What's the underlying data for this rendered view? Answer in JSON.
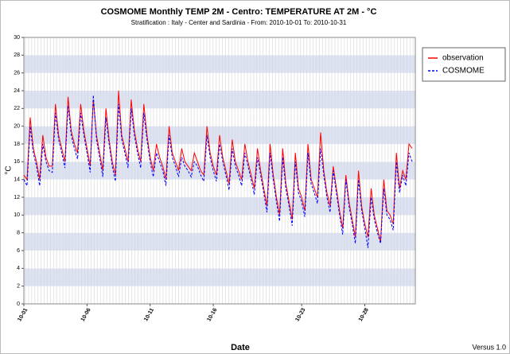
{
  "chart_data": {
    "type": "line",
    "title": "COSMOME Monthly TEMP 2M  - Centro: TEMPERATURE AT 2M  - °C",
    "subtitle": "Stratification : Italy - Center and Sardinia - From: 2010-10-01 To: 2010-10-31",
    "x_label": "Date",
    "y_label": "°C",
    "footer": "Versus 1.0",
    "legend": "right",
    "xlim": [
      1,
      32
    ],
    "xticks": [
      {
        "value": 1,
        "label": "10-01"
      },
      {
        "value": 6,
        "label": "10-06"
      },
      {
        "value": 11,
        "label": "10-11"
      },
      {
        "value": 16,
        "label": "10-16"
      },
      {
        "value": 23,
        "label": "10-23"
      },
      {
        "value": 28,
        "label": "10-28"
      }
    ],
    "ylim": [
      0,
      30
    ],
    "yticks": [
      0,
      2,
      4,
      6,
      8,
      10,
      12,
      14,
      16,
      18,
      20,
      22,
      24,
      26,
      28,
      30
    ],
    "x": [
      1,
      1.25,
      1.5,
      1.75,
      2,
      2.25,
      2.5,
      2.75,
      3,
      3.25,
      3.5,
      3.75,
      4,
      4.25,
      4.5,
      4.75,
      5,
      5.25,
      5.5,
      5.75,
      6,
      6.25,
      6.5,
      6.75,
      7,
      7.25,
      7.5,
      7.75,
      8,
      8.25,
      8.5,
      8.75,
      9,
      9.25,
      9.5,
      9.75,
      10,
      10.25,
      10.5,
      10.75,
      11,
      11.25,
      11.5,
      11.75,
      12,
      12.25,
      12.5,
      12.75,
      13,
      13.25,
      13.5,
      13.75,
      14,
      14.25,
      14.5,
      14.75,
      15,
      15.25,
      15.5,
      15.75,
      16,
      16.25,
      16.5,
      16.75,
      17,
      17.25,
      17.5,
      17.75,
      18,
      18.25,
      18.5,
      18.75,
      19,
      19.25,
      19.5,
      19.75,
      20,
      20.25,
      20.5,
      20.75,
      21,
      21.25,
      21.5,
      21.75,
      22,
      22.25,
      22.5,
      22.75,
      23,
      23.25,
      23.5,
      23.75,
      24,
      24.25,
      24.5,
      24.75,
      25,
      25.25,
      25.5,
      25.75,
      26,
      26.25,
      26.5,
      26.75,
      27,
      27.25,
      27.5,
      27.75,
      28,
      28.25,
      28.5,
      28.75,
      29,
      29.25,
      29.5,
      29.75,
      30,
      30.25,
      30.5,
      30.75,
      31,
      31.25,
      31.5,
      31.75
    ],
    "series": [
      {
        "name": "observation",
        "color": "#ff0000",
        "dash": false,
        "values": [
          14.5,
          14,
          21,
          17.5,
          16,
          14,
          19,
          16.5,
          15.5,
          15.5,
          22.5,
          19,
          17.5,
          16,
          23.3,
          19.5,
          18,
          17,
          22.5,
          19.5,
          17.5,
          15.5,
          23,
          19,
          17,
          15,
          22,
          18.5,
          16,
          14.5,
          24,
          19,
          17.5,
          16,
          23,
          19.5,
          17.5,
          16,
          22.5,
          19,
          16.5,
          15,
          18,
          16.5,
          15.5,
          14,
          20,
          17,
          16,
          15,
          17.5,
          16,
          15.5,
          15,
          17,
          16,
          15,
          14.5,
          20,
          17,
          15.5,
          14.5,
          19,
          16.5,
          15,
          13.5,
          18.5,
          16,
          15,
          14,
          18,
          16,
          14.5,
          13,
          17.5,
          15,
          13,
          11,
          18,
          14.5,
          12,
          10,
          17.5,
          13.5,
          11.5,
          9.5,
          17,
          13,
          12,
          10.5,
          18,
          14,
          13,
          12,
          19.3,
          15,
          12.5,
          11,
          15.5,
          13,
          10.5,
          8.5,
          14.5,
          11.5,
          9.5,
          7.5,
          15,
          11,
          9,
          7.5,
          13,
          10,
          8.5,
          7,
          14,
          10.5,
          10,
          9,
          17,
          13,
          15,
          14,
          18,
          17.5
        ]
      },
      {
        "name": "COSMOME",
        "color": "#0000ff",
        "dash": true,
        "values": [
          14,
          13.3,
          20,
          17,
          15.5,
          13.3,
          18,
          16,
          15,
          14.8,
          21.5,
          18.5,
          17,
          15.3,
          22.3,
          19,
          17.5,
          16.3,
          21.5,
          19,
          17,
          14.8,
          23.5,
          18.5,
          16.5,
          14.3,
          21,
          18,
          15.5,
          13.8,
          22.5,
          18.5,
          17,
          15.3,
          22,
          19,
          17,
          15.3,
          21.5,
          18.5,
          16,
          14.3,
          17,
          16,
          15,
          13.3,
          19,
          16.5,
          15.5,
          14.3,
          16.5,
          15.5,
          15,
          14.3,
          16,
          15.5,
          14.5,
          13.8,
          19,
          16.5,
          15,
          13.8,
          18,
          16,
          14.5,
          12.8,
          17.5,
          15.5,
          14.5,
          13.3,
          17,
          15.5,
          14,
          12.3,
          16.5,
          14.5,
          12.5,
          10.3,
          17,
          14,
          11.5,
          9.3,
          16.5,
          13,
          11,
          8.8,
          16,
          12.5,
          11.5,
          9.8,
          17,
          13.5,
          12.5,
          11.3,
          17.5,
          14.5,
          12,
          10.3,
          15,
          12.5,
          10,
          7.8,
          14,
          11,
          9,
          6.8,
          14,
          10.5,
          8.5,
          6.3,
          12,
          9.5,
          8,
          6.8,
          13,
          10,
          9.5,
          8.3,
          16,
          12.5,
          14.5,
          13.3,
          17,
          16
        ]
      }
    ]
  }
}
